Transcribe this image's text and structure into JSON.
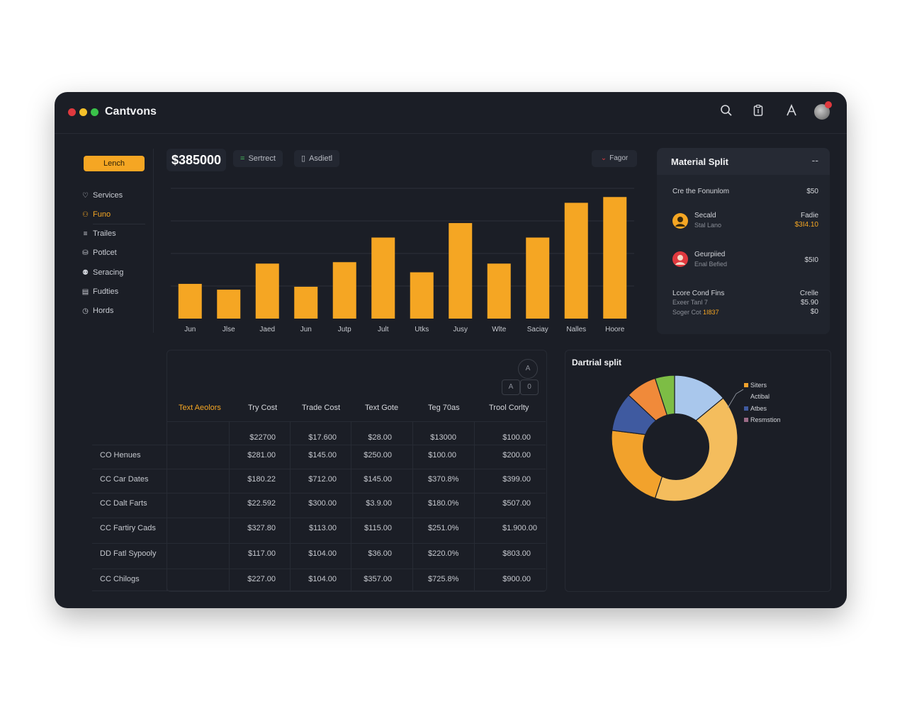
{
  "app": {
    "title": "Cantvons"
  },
  "topbar": {
    "icons": [
      "search-icon",
      "clipboard-icon",
      "font-icon",
      "avatar"
    ]
  },
  "sidebar": {
    "launch_label": "Lench",
    "items": [
      {
        "label": "Services",
        "icon": "tag-icon",
        "active": false
      },
      {
        "label": "Funo",
        "icon": "user-icon",
        "active": true
      },
      {
        "label": "Trailes",
        "icon": "layers-icon",
        "active": false
      },
      {
        "label": "Potlcet",
        "icon": "cart-icon",
        "active": false
      },
      {
        "label": "Seracing",
        "icon": "people-icon",
        "active": false
      },
      {
        "label": "Fudties",
        "icon": "document-icon",
        "active": false
      },
      {
        "label": "Hords",
        "icon": "clock-icon",
        "active": false
      }
    ]
  },
  "toolbar": {
    "amount": "$385000",
    "chip1": "Sertrect",
    "chip2": "Asdietl",
    "chip_right": "Fagor"
  },
  "bar_chart": {
    "chart_data": {
      "type": "bar",
      "categories": [
        "Jun",
        "Jlse",
        "Jaed",
        "Jun",
        "Jutp",
        "Jult",
        "Utks",
        "Jusy",
        "Wlte",
        "Saciay",
        "Nalles",
        "Hoore"
      ],
      "values": [
        24,
        20,
        38,
        22,
        39,
        56,
        32,
        66,
        38,
        56,
        80,
        84
      ],
      "ylim": [
        0,
        90
      ],
      "grid": true,
      "color": "#f5a623"
    }
  },
  "material_split": {
    "title": "Material Split",
    "more": "--",
    "row0": {
      "label": "Cre the Fonunlom",
      "value": "$50"
    },
    "row1": {
      "name": "Secald",
      "sub": "Stal Lano",
      "right_label": "Fadie",
      "right_value": "$3I4.10"
    },
    "row2": {
      "name": "Geurpiied",
      "sub": "Enal Befied",
      "value": "$5I0"
    },
    "row3": {
      "label": "Lcore Cond Fins",
      "right": "Crelle",
      "line2": "Exeer Tanl 7",
      "line2_value": "$5.90",
      "line3_label": "Soger Cot",
      "line3_amber": "1I837",
      "line3_value": "$0"
    }
  },
  "table": {
    "controls": [
      "A",
      "A",
      "0"
    ],
    "headers": [
      "Text Aeolors",
      "Try Cost",
      "Trade Cost",
      "Text Gote",
      "Teg 70as",
      "Trool Corlty"
    ],
    "top_row": [
      "$22700",
      "$17.600",
      "$28.00",
      "$13000",
      "$100.00"
    ],
    "rows": [
      {
        "label": "CO Henues",
        "values": [
          "$281.00",
          "$145.00",
          "$250.00",
          "$100.00",
          "$200.00"
        ]
      },
      {
        "label": "CC Car Dates",
        "values": [
          "$180.22",
          "$712.00",
          "$145.00",
          "$370.8%",
          "$399.00"
        ]
      },
      {
        "label": "CC Dalt Farts",
        "values": [
          "$22.592",
          "$300.00",
          "$3.9.00",
          "$180.0%",
          "$507.00"
        ]
      },
      {
        "label": "CC Fartiry Cads",
        "values": [
          "$327.80",
          "$113.00",
          "$115.00",
          "$251.0%",
          "$1.900.00"
        ]
      },
      {
        "label": "DD Fatl Sypooly",
        "values": [
          "$117.00",
          "$104.00",
          "$36.00",
          "$220.0%",
          "$803.00"
        ]
      },
      {
        "label": "CC Chilogs",
        "values": [
          "$227.00",
          "$104.00",
          "$357.00",
          "$725.8%",
          "$900.00"
        ]
      }
    ]
  },
  "donut": {
    "title": "Dartrial split",
    "chart_data": {
      "type": "pie",
      "legend": "right",
      "slices": [
        {
          "label": "Siters",
          "value": 14,
          "color": "#a9c7ec"
        },
        {
          "label": "",
          "value": 41,
          "color": "#f4bd5d"
        },
        {
          "label": "",
          "value": 22,
          "color": "#f2a22c"
        },
        {
          "label": "Atbes",
          "value": 10,
          "color": "#3f5aa0"
        },
        {
          "label": "Actibal",
          "value": 8,
          "color": "#f08a3a"
        },
        {
          "label": "Resmstion",
          "value": 5,
          "color": "#7dbd45"
        }
      ]
    }
  }
}
